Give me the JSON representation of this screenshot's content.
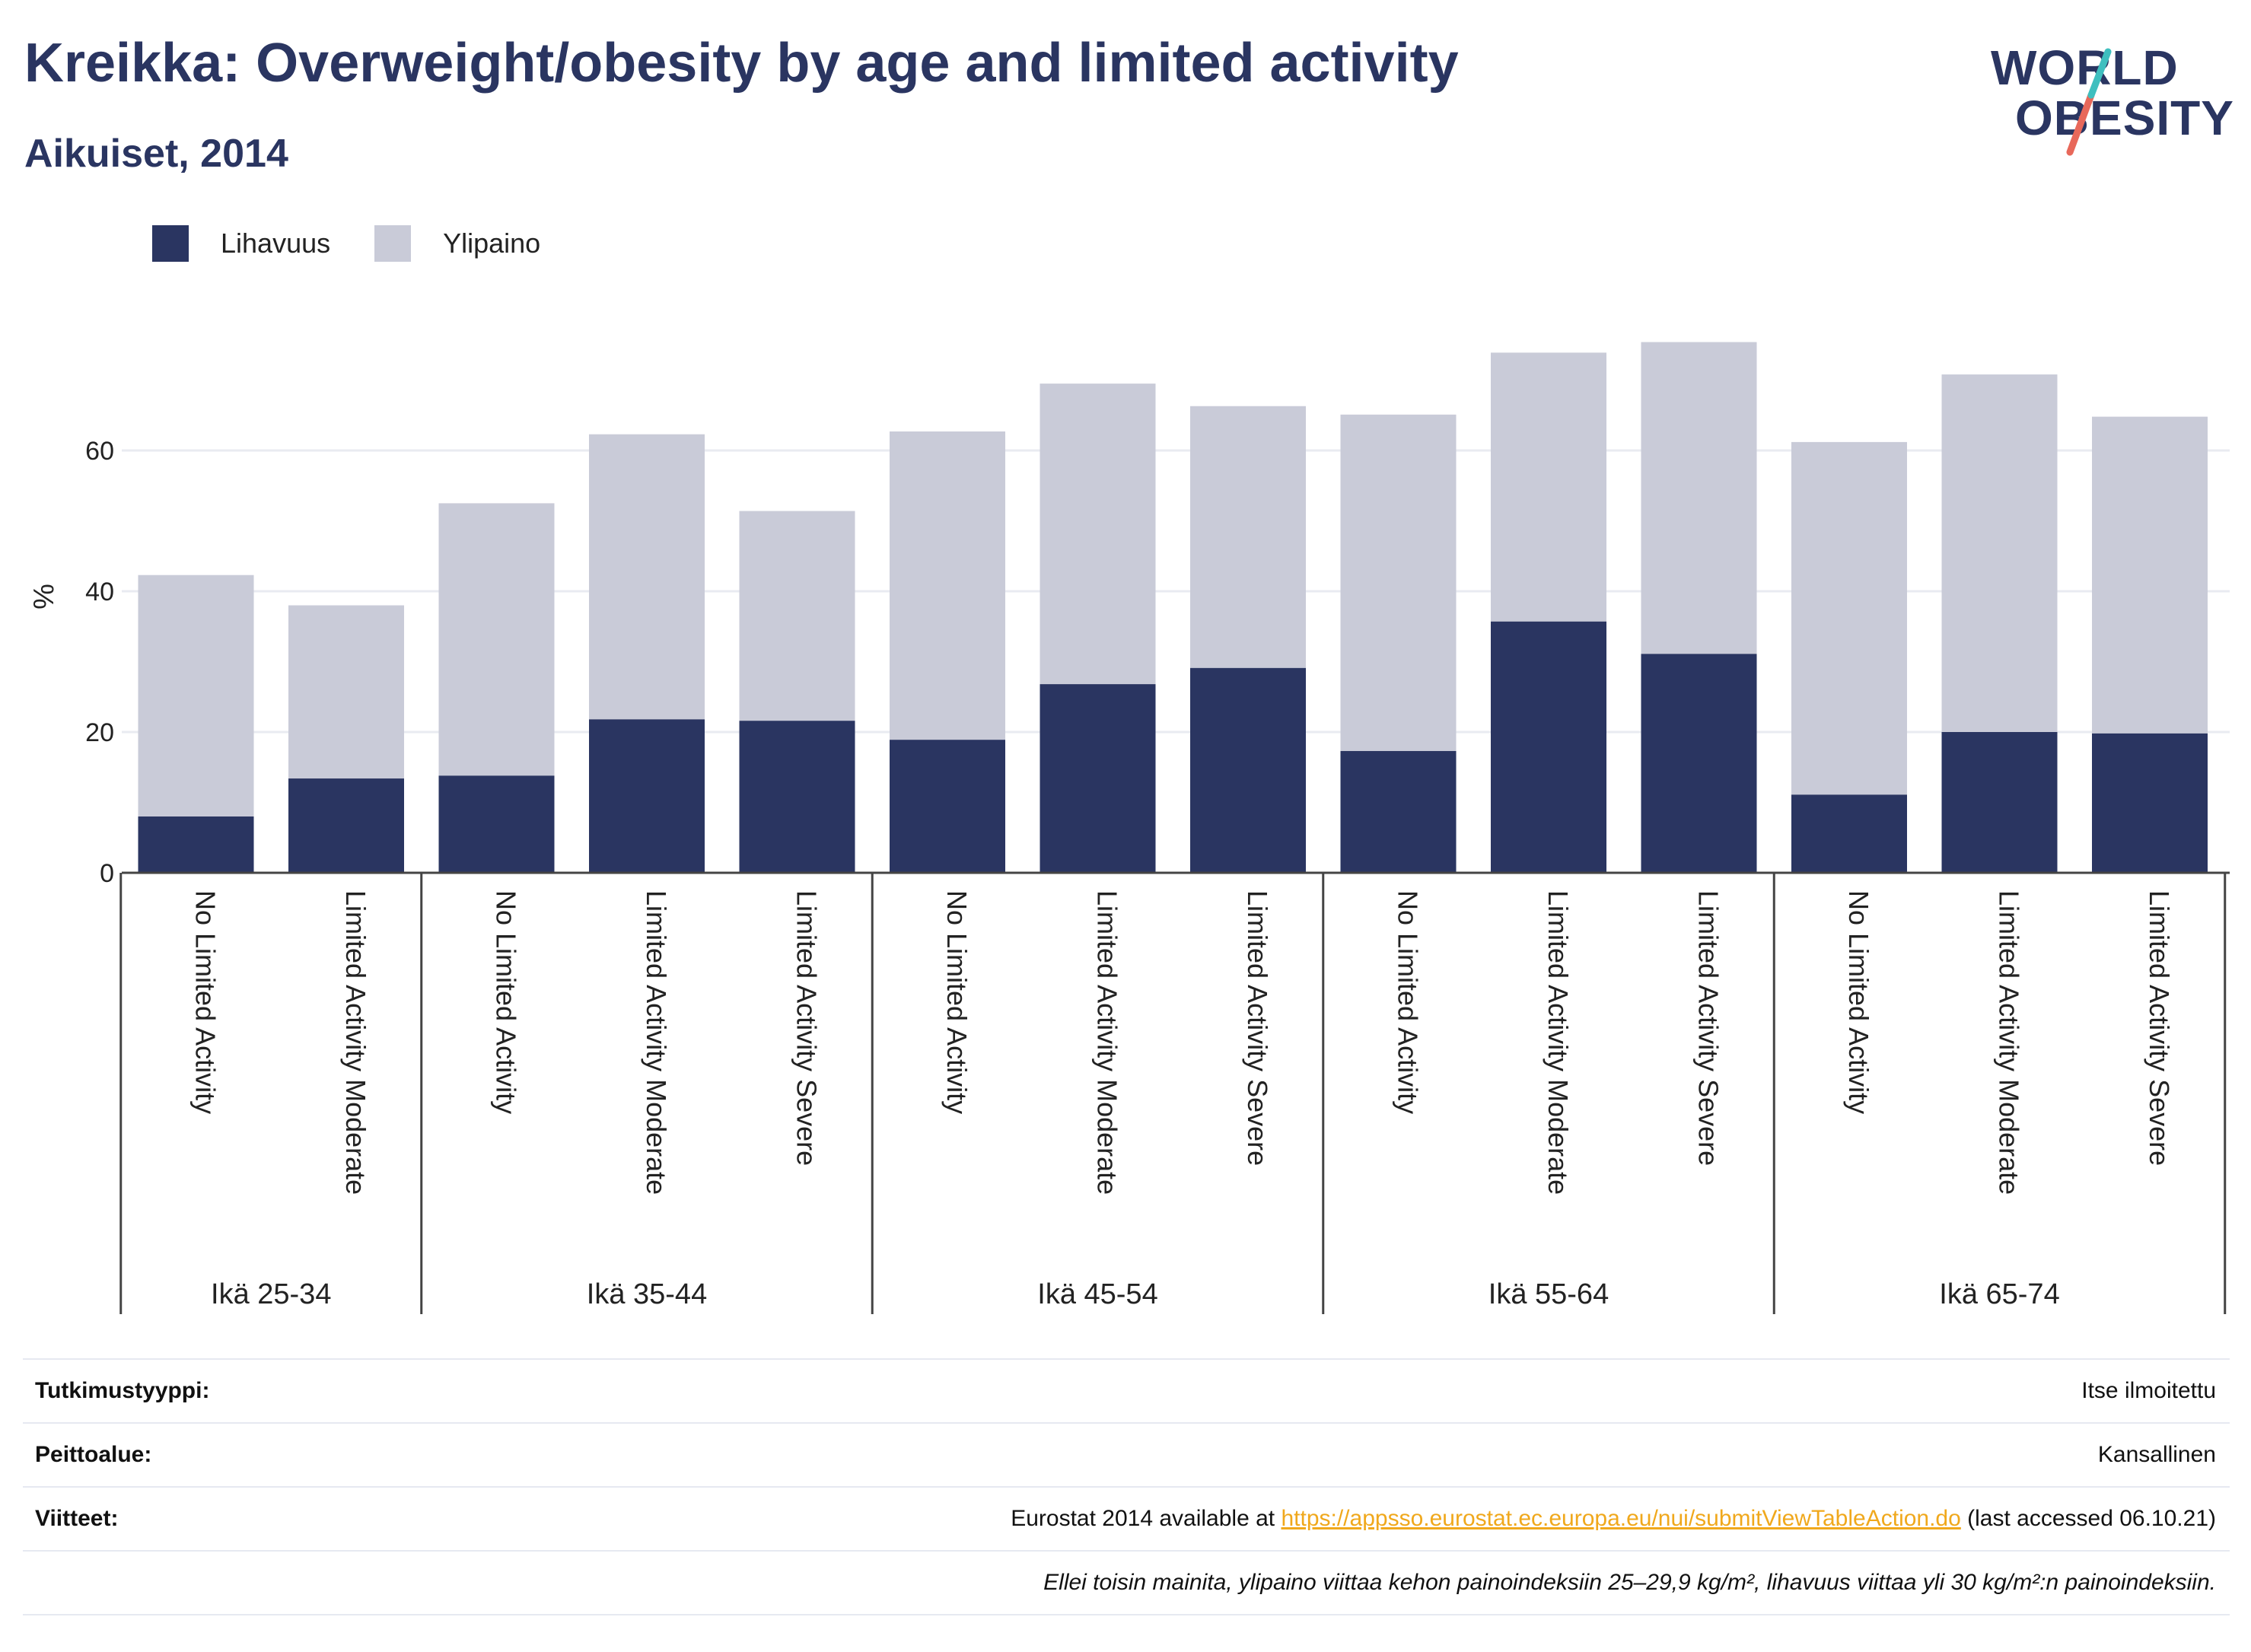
{
  "header": {
    "title": "Kreikka: Overweight/obesity by age and limited activity",
    "subtitle": "Aikuiset, 2014"
  },
  "logo": {
    "line1": "WORLD",
    "line2": "OBESITY",
    "accent1": "#3fbfbf",
    "accent2": "#e8685a"
  },
  "colors": {
    "obesity": "#2a3561",
    "overweight": "#c9cbd8",
    "text": "#2a3561"
  },
  "legend": [
    {
      "label": "Lihavuus",
      "color": "#2a3561"
    },
    {
      "label": "Ylipaino",
      "color": "#c9cbd8"
    }
  ],
  "chart_data": {
    "type": "bar",
    "stacked": true,
    "ylabel": "%",
    "ylim": [
      0,
      80
    ],
    "yticks": [
      0,
      20,
      40,
      60
    ],
    "grid": true,
    "legend_position": "top-left",
    "groups": [
      {
        "name": "Ikä 25-34",
        "categories": [
          "No Limited Activity",
          "Limited Activity Moderate"
        ]
      },
      {
        "name": "Ikä 35-44",
        "categories": [
          "No Limited Activity",
          "Limited Activity Moderate",
          "Limited Activity Severe"
        ]
      },
      {
        "name": "Ikä 45-54",
        "categories": [
          "No Limited Activity",
          "Limited Activity Moderate",
          "Limited Activity Severe"
        ]
      },
      {
        "name": "Ikä 55-64",
        "categories": [
          "No Limited Activity",
          "Limited Activity Moderate",
          "Limited Activity Severe"
        ]
      },
      {
        "name": "Ikä 65-74",
        "categories": [
          "No Limited Activity",
          "Limited Activity Moderate",
          "Limited Activity Severe"
        ]
      }
    ],
    "series": [
      {
        "name": "Lihavuus",
        "values": [
          8.0,
          13.4,
          13.8,
          21.8,
          21.6,
          18.9,
          26.8,
          29.1,
          17.3,
          35.7,
          31.1,
          11.1,
          20.0,
          19.8
        ]
      },
      {
        "name": "Ylipaino",
        "values": [
          34.3,
          24.6,
          38.7,
          40.5,
          29.8,
          43.8,
          42.7,
          37.2,
          47.8,
          38.2,
          44.3,
          50.1,
          50.8,
          45.0
        ]
      }
    ]
  },
  "info": {
    "study_type_label": "Tutkimustyyppi:",
    "study_type_value": "Itse ilmoitettu",
    "coverage_label": "Peittoalue:",
    "coverage_value": "Kansallinen",
    "refs_label": "Viitteet:",
    "refs_prefix": "Eurostat 2014 available at ",
    "refs_link": "https://appsso.eurostat.ec.europa.eu/nui/submitViewTableAction.do",
    "refs_suffix": " (last accessed 06.10.21)",
    "note": "Ellei toisin mainita, ylipaino viittaa kehon painoindeksiin 25–29,9 kg/m², lihavuus viittaa yli 30 kg/m²:n painoindeksiin."
  }
}
